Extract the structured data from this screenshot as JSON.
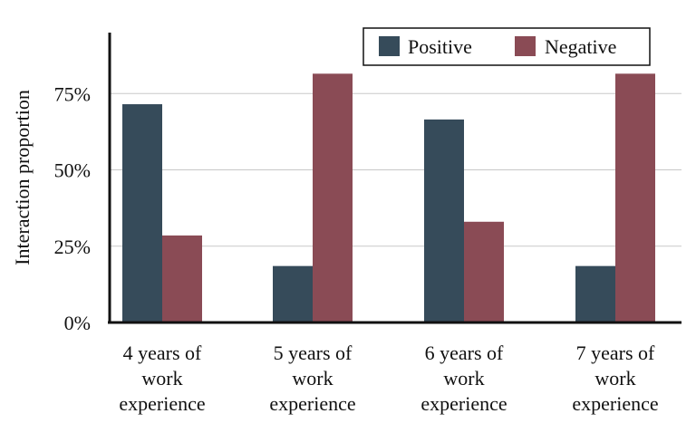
{
  "chart_data": {
    "type": "bar",
    "ylabel": "Interaction proportion",
    "xlabel": "",
    "categories": [
      [
        "4 years of",
        "work",
        "experience"
      ],
      [
        "5 years of",
        "work",
        "experience"
      ],
      [
        "6 years of",
        "work",
        "experience"
      ],
      [
        "7 years of",
        "work",
        "experience"
      ]
    ],
    "series": [
      {
        "name": "Positive",
        "color": "#364b5a",
        "values": [
          71.5,
          18.5,
          66.5,
          18.5
        ]
      },
      {
        "name": "Negative",
        "color": "#8a4b55",
        "values": [
          28.5,
          81.5,
          33.0,
          81.5
        ]
      }
    ],
    "ylim": [
      0,
      100
    ],
    "yticks": [
      0,
      25,
      50,
      75
    ],
    "ytick_labels": [
      "0%",
      "25%",
      "50%",
      "75%"
    ],
    "grid": "horizontal",
    "legend_position": "top-right"
  }
}
